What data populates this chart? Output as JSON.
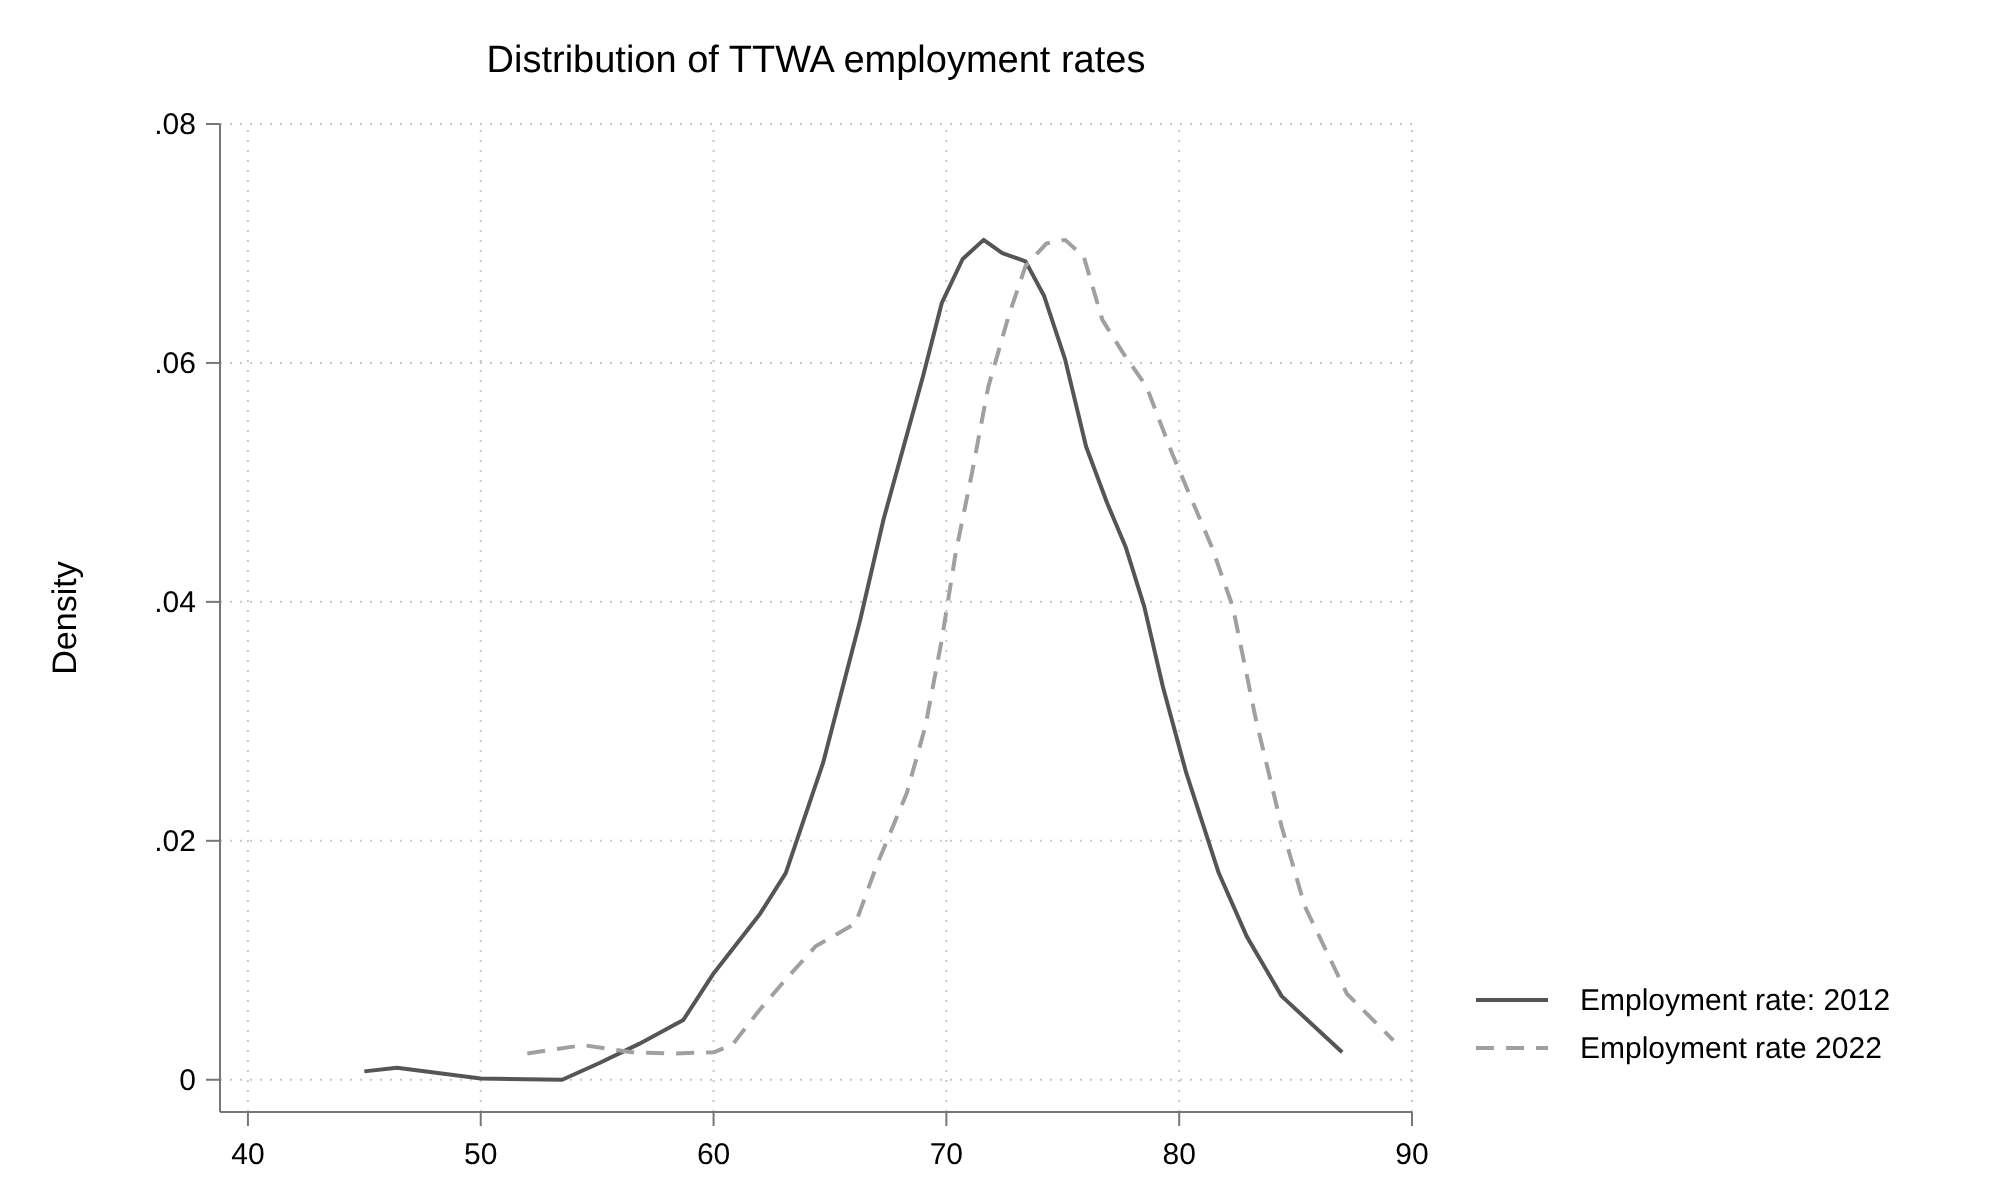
{
  "chart_data": {
    "type": "line",
    "title": "Distribution of TTWA employment rates",
    "ylabel": "Density",
    "xlim": [
      38.8,
      90
    ],
    "xticks": [
      40,
      50,
      60,
      70,
      80,
      90
    ],
    "ylim": [
      -0.0027,
      0.08
    ],
    "yticks": [
      {
        "value": 0,
        "label": "0"
      },
      {
        "value": 0.02,
        "label": ".02"
      },
      {
        "value": 0.04,
        "label": ".04"
      },
      {
        "value": 0.06,
        "label": ".06"
      },
      {
        "value": 0.08,
        "label": ".08"
      }
    ],
    "grid": true,
    "legend": "right",
    "series": [
      {
        "name": "Employment rate: 2012",
        "color": "#555555",
        "line_style": "solid",
        "x": [
          45.0,
          46.4,
          50.0,
          53.5,
          55.1,
          56.8,
          58.7,
          60.0,
          62.0,
          63.1,
          64.7,
          66.3,
          67.3,
          69.0,
          69.8,
          70.7,
          71.6,
          72.4,
          73.4,
          74.2,
          75.1,
          76.0,
          76.9,
          77.7,
          78.5,
          79.3,
          80.3,
          81.7,
          82.9,
          84.4,
          87.0
        ],
        "values": [
          0.0007,
          0.001,
          0.0001,
          0,
          0.0014,
          0.003,
          0.005,
          0.0089,
          0.0139,
          0.0173,
          0.0265,
          0.0385,
          0.0469,
          0.0589,
          0.065,
          0.0687,
          0.0703,
          0.0692,
          0.0685,
          0.0656,
          0.0603,
          0.053,
          0.0483,
          0.0446,
          0.0396,
          0.0329,
          0.0257,
          0.0173,
          0.012,
          0.007,
          0.0023
        ]
      },
      {
        "name": "Employment rate 2022",
        "color": "#a0a0a0",
        "line_style": "dashed",
        "x": [
          52.0,
          54.4,
          56.5,
          58.3,
          60.0,
          60.8,
          62.0,
          63.1,
          64.4,
          65.4,
          66.1,
          67.0,
          68.3,
          69.1,
          69.8,
          70.4,
          71.1,
          71.8,
          72.7,
          73.4,
          74.3,
          75.1,
          75.9,
          76.7,
          77.6,
          78.6,
          79.7,
          81.4,
          82.3,
          83.3,
          84.4,
          85.4,
          87.2,
          89.2
        ],
        "values": [
          0.0022,
          0.0029,
          0.0023,
          0.0022,
          0.0023,
          0.0029,
          0.0059,
          0.0084,
          0.0112,
          0.0123,
          0.0131,
          0.0179,
          0.024,
          0.0296,
          0.0368,
          0.0441,
          0.0508,
          0.058,
          0.0641,
          0.0681,
          0.07,
          0.0703,
          0.0689,
          0.0636,
          0.0608,
          0.058,
          0.0524,
          0.0446,
          0.0396,
          0.0301,
          0.0212,
          0.0145,
          0.0072,
          0.0033
        ]
      }
    ]
  }
}
